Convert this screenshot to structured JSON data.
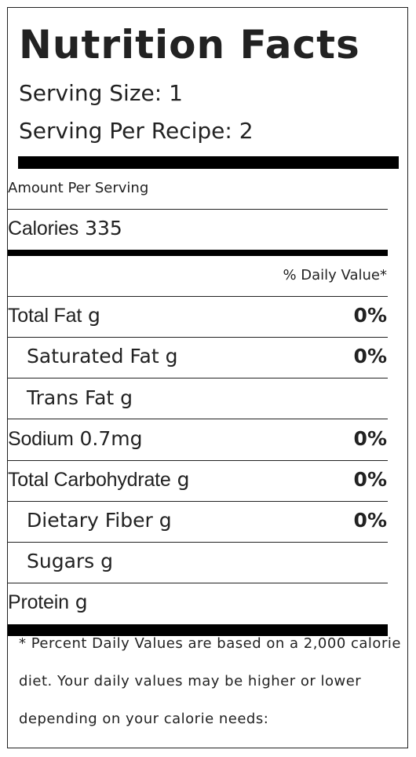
{
  "title": "Nutrition Facts",
  "serving_size": "Serving Size: 1",
  "serving_per_recipe": "Serving Per Recipe: 2",
  "amount_per_serving": "Amount Per Serving",
  "calories": {
    "label": "Calories",
    "value": "335"
  },
  "daily_value_header": "% Daily Value*",
  "nutrients": {
    "total_fat": {
      "label": "Total Fat",
      "amount": "g",
      "dv": "0%"
    },
    "saturated_fat": {
      "label": "Saturated Fat",
      "amount": "g",
      "dv": "0%"
    },
    "trans_fat": {
      "label": "Trans Fat",
      "amount": "g"
    },
    "sodium": {
      "label": "Sodium",
      "amount": "0.7mg",
      "dv": "0%"
    },
    "total_carbohydrate": {
      "label": "Total Carbohydrate",
      "amount": "g",
      "dv": "0%"
    },
    "dietary_fiber": {
      "label": "Dietary Fiber",
      "amount": "g",
      "dv": "0%"
    },
    "sugars": {
      "label": "Sugars",
      "amount": "g"
    },
    "protein": {
      "label": "Protein",
      "amount": "g"
    }
  },
  "footnote": "* Percent Daily Values are based on a 2,000 calorie diet. Your daily values may be higher or lower depending on your calorie needs:"
}
